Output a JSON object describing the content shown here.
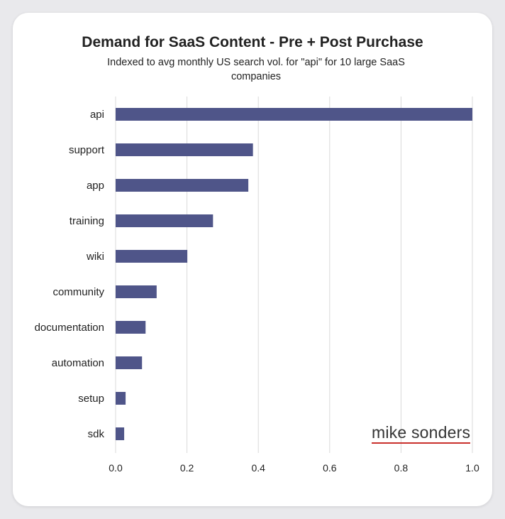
{
  "chart_data": {
    "type": "bar",
    "orientation": "horizontal",
    "title": "Demand for SaaS Content - Pre + Post Purchase",
    "subtitle": "Indexed to avg monthly US search vol. for \"api\" for 10 large SaaS companies",
    "categories": [
      "api",
      "support",
      "app",
      "training",
      "wiki",
      "community",
      "documentation",
      "automation",
      "setup",
      "sdk"
    ],
    "values": [
      1.0,
      0.385,
      0.372,
      0.273,
      0.201,
      0.115,
      0.084,
      0.074,
      0.028,
      0.024
    ],
    "xlabel": "",
    "ylabel": "",
    "xlim": [
      0,
      1.0
    ],
    "xticks": [
      "0.0",
      "0.2",
      "0.4",
      "0.6",
      "0.8",
      "1.0"
    ],
    "grid": "vertical",
    "bar_color": "#4f5589",
    "grid_color": "#d9d9d9"
  },
  "branding": {
    "logo_text": "mike sonders",
    "underline_color": "#c9302c"
  }
}
